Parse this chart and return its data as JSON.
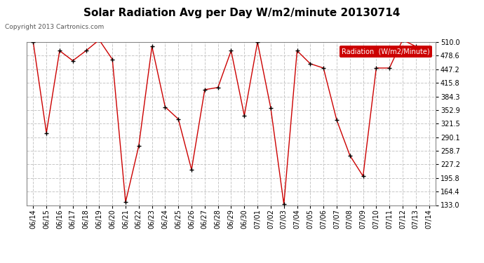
{
  "title": "Solar Radiation Avg per Day W/m2/minute 20130714",
  "copyright": "Copyright 2013 Cartronics.com",
  "legend_label": "Radiation  (W/m2/Minute)",
  "dates": [
    "06/14",
    "06/15",
    "06/16",
    "06/17",
    "06/18",
    "06/19",
    "06/20",
    "06/21",
    "06/22",
    "06/23",
    "06/24",
    "06/25",
    "06/26",
    "06/27",
    "06/28",
    "06/29",
    "06/30",
    "07/01",
    "07/02",
    "07/03",
    "07/04",
    "07/05",
    "07/06",
    "07/07",
    "07/08",
    "07/09",
    "07/10",
    "07/11",
    "07/12",
    "07/13",
    "07/14"
  ],
  "values": [
    510,
    300,
    490,
    467,
    490,
    515,
    470,
    140,
    270,
    500,
    360,
    332,
    215,
    400,
    405,
    490,
    340,
    510,
    358,
    135,
    490,
    460,
    450,
    330,
    248,
    200,
    450,
    450,
    515,
    500,
    490
  ],
  "ylim": [
    133.0,
    510.0
  ],
  "yticks": [
    133.0,
    164.4,
    195.8,
    227.2,
    258.7,
    290.1,
    321.5,
    352.9,
    384.3,
    415.8,
    447.2,
    478.6,
    510.0
  ],
  "line_color": "#cc0000",
  "marker_color": "#000000",
  "bg_color": "#ffffff",
  "plot_bg_color": "#ffffff",
  "grid_color": "#c8c8c8",
  "title_fontsize": 11,
  "copyright_fontsize": 6.5,
  "tick_fontsize": 7,
  "legend_bg": "#cc0000",
  "legend_text_color": "#ffffff",
  "legend_fontsize": 7
}
